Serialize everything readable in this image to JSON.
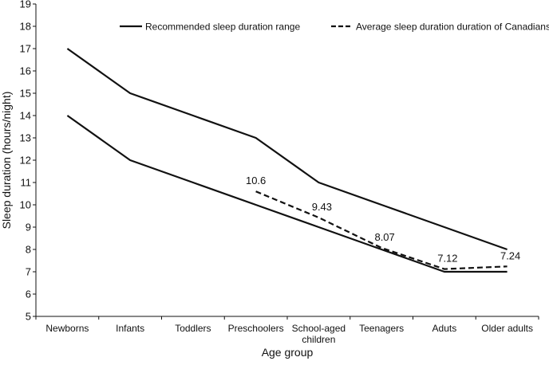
{
  "chart_data": {
    "type": "line",
    "xlabel": "Age group",
    "ylabel": "Sleep duration (hours/night)",
    "ylim": [
      5,
      19
    ],
    "yticks": [
      5,
      6,
      7,
      8,
      9,
      10,
      11,
      12,
      13,
      14,
      15,
      16,
      17,
      18,
      19
    ],
    "categories": [
      [
        "Newborns"
      ],
      [
        "Infants"
      ],
      [
        "Toddlers"
      ],
      [
        "Preschoolers"
      ],
      [
        "School-aged",
        "children"
      ],
      [
        "Teenagers"
      ],
      [
        "Aduts"
      ],
      [
        "Older adults"
      ]
    ],
    "legend": {
      "position": "top",
      "items": [
        {
          "label": "Recommended sleep duration range",
          "style": "solid"
        },
        {
          "label": "Average sleep duration duration of Canadians",
          "style": "dashed"
        }
      ]
    },
    "series": [
      {
        "role": "range-upper",
        "style": "solid",
        "values": [
          17,
          15,
          14,
          13,
          11,
          10,
          9,
          8
        ]
      },
      {
        "role": "range-lower",
        "style": "solid",
        "values": [
          14,
          12,
          11,
          10,
          9,
          8,
          7,
          7
        ]
      },
      {
        "role": "average",
        "style": "dashed",
        "values": [
          null,
          null,
          null,
          10.6,
          9.43,
          8.07,
          7.12,
          7.24
        ]
      }
    ],
    "data_labels": [
      {
        "category_index": 3,
        "value": 10.6,
        "text": "10.6"
      },
      {
        "category_index": 4,
        "value": 9.43,
        "text": "9.43"
      },
      {
        "category_index": 5,
        "value": 8.07,
        "text": "8.07"
      },
      {
        "category_index": 6,
        "value": 7.12,
        "text": "7.12"
      },
      {
        "category_index": 7,
        "value": 7.24,
        "text": "7.24"
      }
    ],
    "colors": {
      "line": "#111111",
      "axis": "#111111",
      "background": "#ffffff"
    }
  }
}
